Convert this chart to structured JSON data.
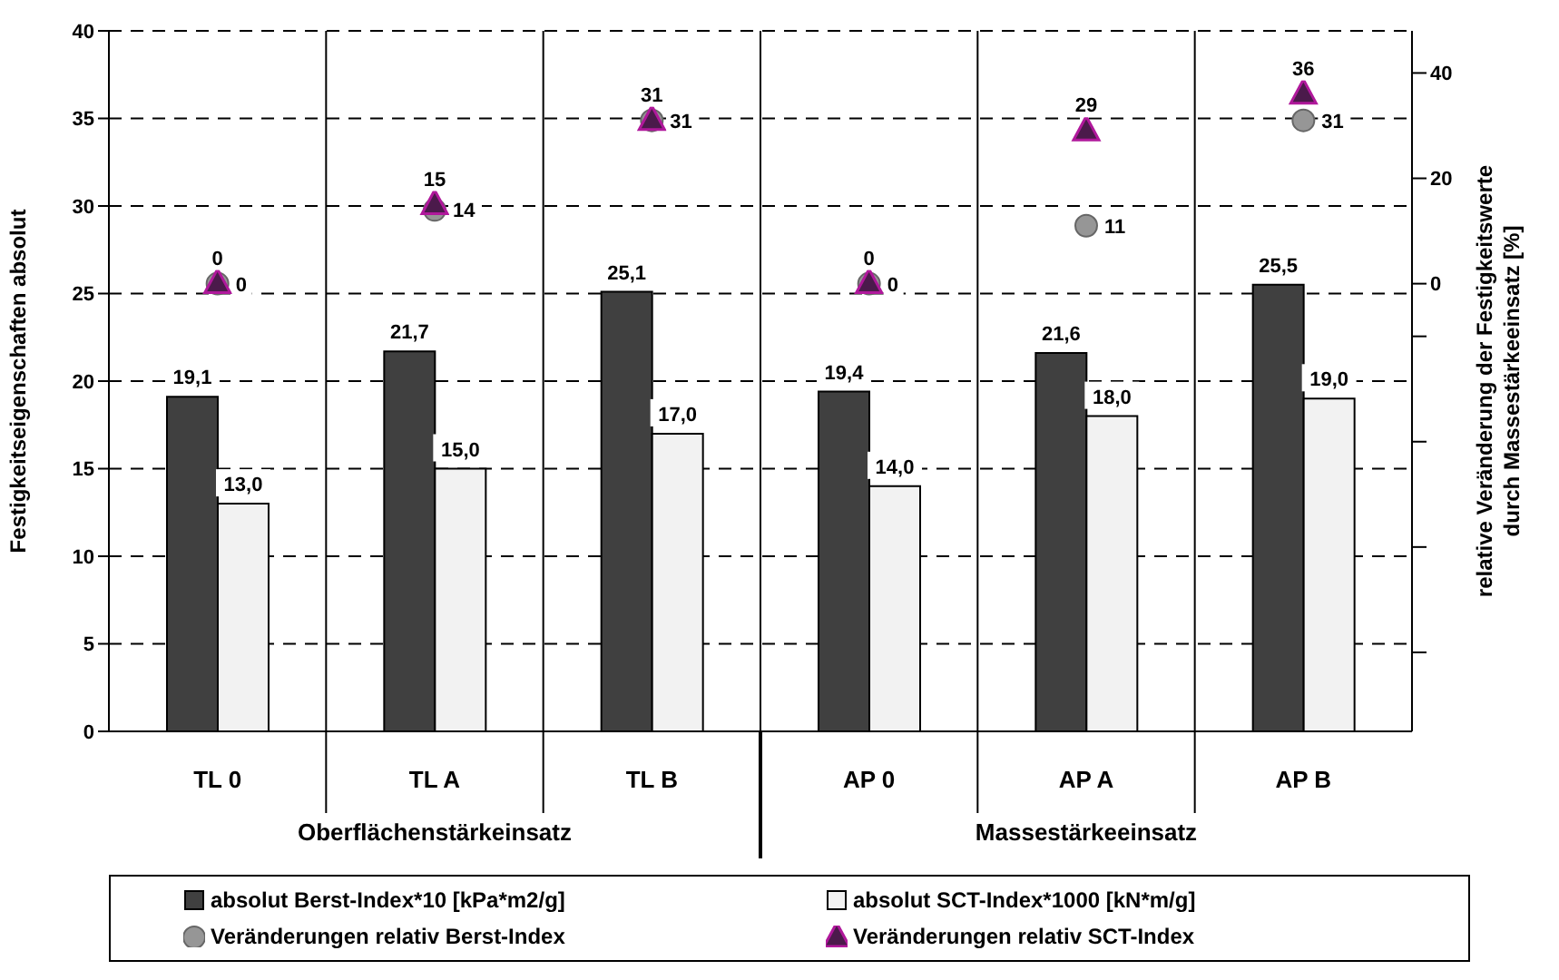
{
  "chart_data": {
    "type": "bar",
    "categories": [
      "TL 0",
      "TL A",
      "TL B",
      "AP 0",
      "AP A",
      "AP B"
    ],
    "ylabel": "Festigkeitseigenschaften absolut",
    "y2label": "relative Veränderung der Festigkeitswerte durch Massestärkeeinsatz [%]",
    "annotations": [
      "Oberflächenstärkeinsatz",
      "Massestärkeeinsatz"
    ],
    "series": [
      {
        "name": "absolut Berst-Index*10 [kPa*m2/g]",
        "color": "#404040",
        "values": [
          19.1,
          21.7,
          25.1,
          19.4,
          21.6,
          25.5
        ],
        "value_labels": [
          "19,1",
          "21,7",
          "25,1",
          "19,4",
          "21,6",
          "25,5"
        ]
      },
      {
        "name": "absolut SCT-Index*1000 [kN*m/g]",
        "color": "#f2f2f2",
        "values": [
          13.0,
          15.0,
          17.0,
          14.0,
          18.0,
          19.0
        ],
        "value_labels": [
          "13,0",
          "15,0",
          "17,0",
          "14,0",
          "18,0",
          "19,0"
        ]
      },
      {
        "name": "Veränderungen relativ Berst-Index",
        "type": "scatter",
        "axis": "y2",
        "marker": "circle",
        "color": "#969696",
        "values": [
          0,
          14,
          31,
          0,
          11,
          31
        ],
        "value_labels": [
          "0",
          "14",
          "31",
          "0",
          "11",
          "31"
        ]
      },
      {
        "name": "Veränderungen relativ SCT-Index",
        "type": "scatter",
        "axis": "y2",
        "marker": "triangle",
        "color": "#4b1a4b",
        "values": [
          0,
          15,
          31,
          0,
          29,
          36
        ],
        "value_labels": [
          "0",
          "15",
          "31",
          "0",
          "29",
          "36"
        ]
      }
    ],
    "ylim": [
      0,
      40
    ],
    "yticks": [
      0,
      5,
      10,
      15,
      20,
      25,
      30,
      35,
      40
    ],
    "y2lim": [
      -85,
      48
    ],
    "y2ticks": [
      40,
      20,
      0,
      {
        "value": -10,
        "label": null
      },
      {
        "value": -30,
        "label": null
      },
      {
        "value": -50,
        "label": null
      },
      {
        "value": -70,
        "label": null
      }
    ],
    "grid": true,
    "legend": "bottom"
  }
}
